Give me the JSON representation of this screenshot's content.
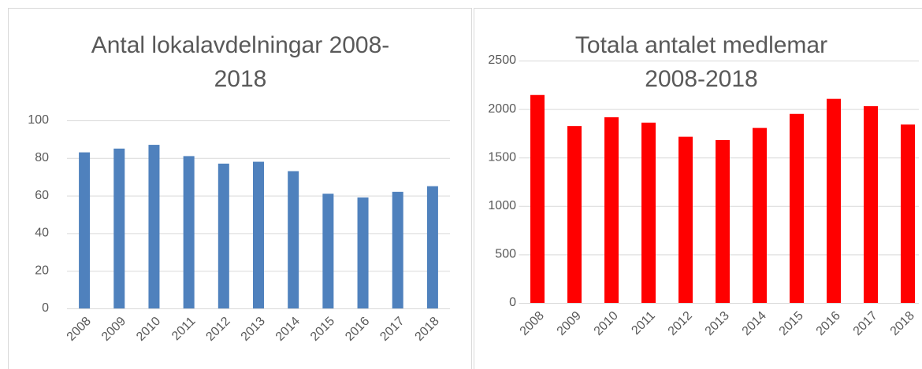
{
  "chart_data": [
    {
      "type": "bar",
      "title": "Antal lokalavdelningar 2008-2018",
      "categories": [
        "2008",
        "2009",
        "2010",
        "2011",
        "2012",
        "2013",
        "2014",
        "2015",
        "2016",
        "2017",
        "2018"
      ],
      "values": [
        83,
        85,
        87,
        81,
        77,
        78,
        73,
        61,
        59,
        62,
        65
      ],
      "color": "#4f81bd",
      "ylim": [
        0,
        100
      ],
      "yticks": [
        0,
        20,
        40,
        60,
        80,
        100
      ],
      "grid": true
    },
    {
      "type": "bar",
      "title": "Totala antalet medlemar 2008-2018",
      "categories": [
        "2008",
        "2009",
        "2010",
        "2011",
        "2012",
        "2013",
        "2014",
        "2015",
        "2016",
        "2017",
        "2018"
      ],
      "values": [
        2145,
        1825,
        1915,
        1860,
        1715,
        1680,
        1805,
        1950,
        2105,
        2030,
        1840
      ],
      "color": "#ff0000",
      "ylim": [
        0,
        2500
      ],
      "yticks": [
        0,
        500,
        1000,
        1500,
        2000,
        2500
      ],
      "grid": true
    }
  ]
}
